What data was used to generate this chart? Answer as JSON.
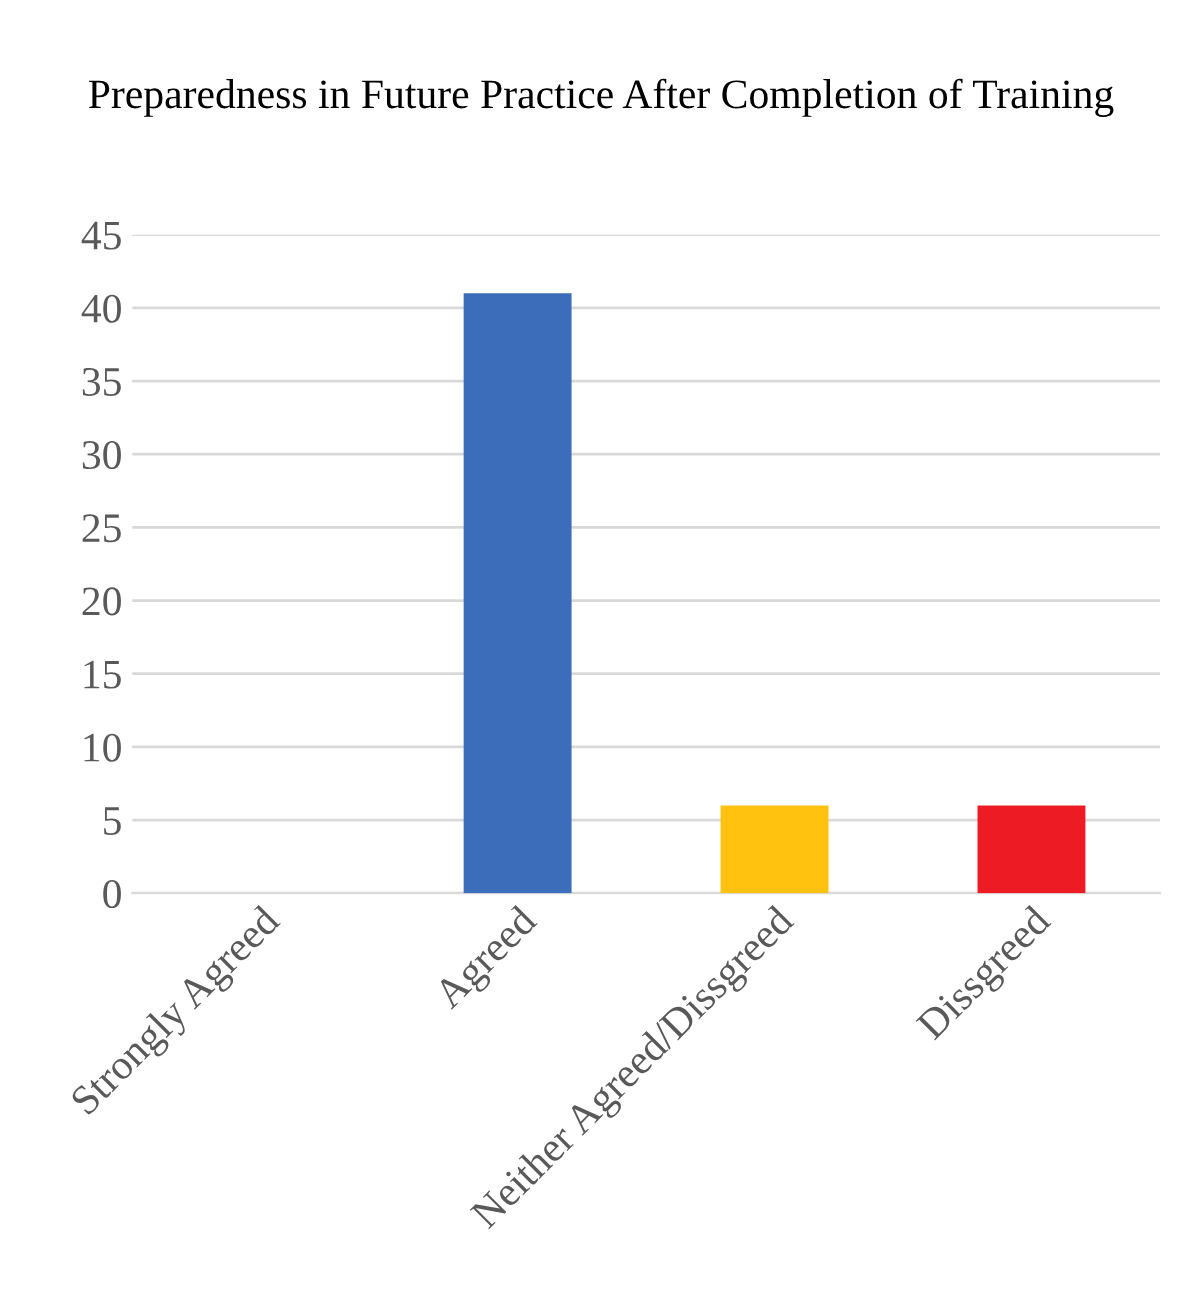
{
  "chart_data": {
    "type": "bar",
    "title": "Preparedness in Future Practice After Completion of Training",
    "categories": [
      "Strongly Agreed",
      "Agreed",
      "Neither Agreed/Dissgreed",
      "Dissgreed"
    ],
    "values": [
      0,
      41,
      6,
      6
    ],
    "colors": [
      "#3c6dbb",
      "#3c6dbb",
      "#ffc20e",
      "#ed1c24"
    ],
    "ylim": [
      0,
      45
    ],
    "yticks": [
      0,
      5,
      10,
      15,
      20,
      25,
      30,
      35,
      40,
      45
    ],
    "grid": "y"
  }
}
